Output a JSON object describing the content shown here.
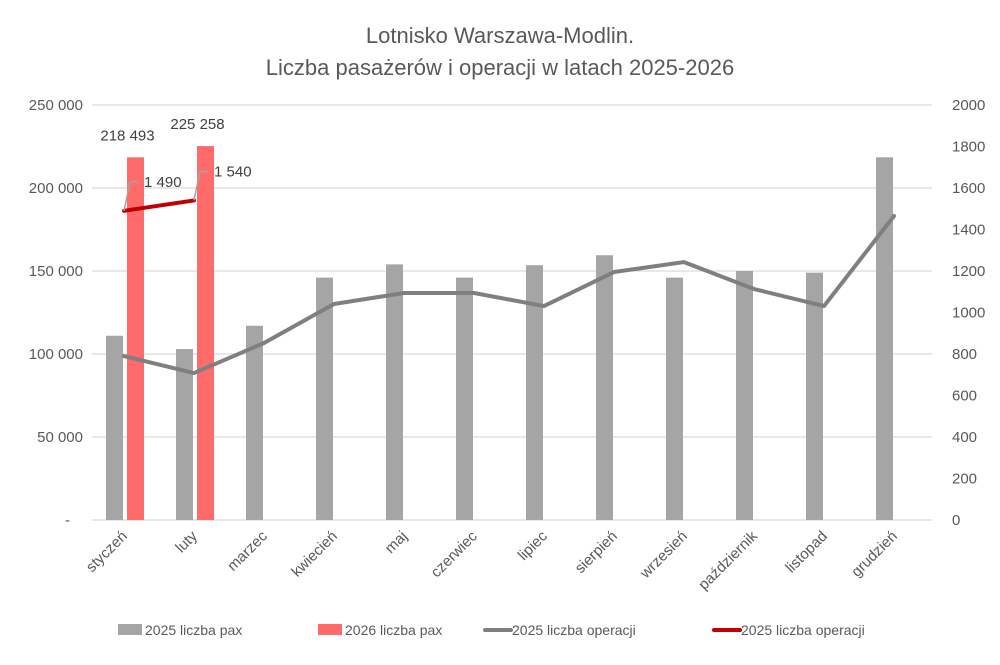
{
  "chart_data": {
    "type": "bar",
    "title": [
      "Lotnisko Warszawa-Modlin.",
      "Liczba pasażerów i operacji w latach 2025-2026"
    ],
    "categories": [
      "styczeń",
      "luty",
      "marzec",
      "kwiecień",
      "maj",
      "czerwiec",
      "lipiec",
      "sierpień",
      "wrzesień",
      "październik",
      "listopad",
      "grudzień"
    ],
    "y_left": {
      "min": 0,
      "max": 250000,
      "ticks": [
        0,
        50000,
        100000,
        150000,
        200000,
        250000
      ],
      "tick_labels": [
        "-",
        "50 000",
        "100 000",
        "150 000",
        "200 000",
        "250 000"
      ]
    },
    "y_right": {
      "min": 0,
      "max": 2000,
      "ticks": [
        0,
        200,
        400,
        600,
        800,
        1000,
        1200,
        1400,
        1600,
        1800,
        2000
      ],
      "tick_labels": [
        "0",
        "200",
        "400",
        "600",
        "800",
        "1000",
        "1200",
        "1400",
        "1600",
        "1800",
        "2000"
      ]
    },
    "grid": true,
    "legend_position": "bottom",
    "series": [
      {
        "name": "2025 liczba pax",
        "type": "bar",
        "axis": "left",
        "color": "#a5a5a5",
        "values": [
          111000,
          103000,
          117000,
          146000,
          154000,
          146000,
          153500,
          159500,
          146000,
          150000,
          149000,
          218500
        ]
      },
      {
        "name": "2026 liczba pax",
        "type": "bar",
        "axis": "left",
        "color": "#ff6b6b",
        "values": [
          218493,
          225258,
          null,
          null,
          null,
          null,
          null,
          null,
          null,
          null,
          null,
          null
        ],
        "data_labels": [
          "218 493",
          "225 258"
        ]
      },
      {
        "name": "2025 liczba operacji",
        "type": "line",
        "axis": "right",
        "color": "#7f7f7f",
        "values": [
          790,
          708,
          853,
          1041,
          1094,
          1094,
          1031,
          1195,
          1243,
          1113,
          1031,
          1465
        ]
      },
      {
        "name": "2025 liczba operacji",
        "type": "line",
        "axis": "right",
        "color": "#c00000",
        "values": [
          1490,
          1540,
          null,
          null,
          null,
          null,
          null,
          null,
          null,
          null,
          null,
          null
        ],
        "data_labels": [
          "1 490",
          "1 540"
        ]
      }
    ]
  }
}
